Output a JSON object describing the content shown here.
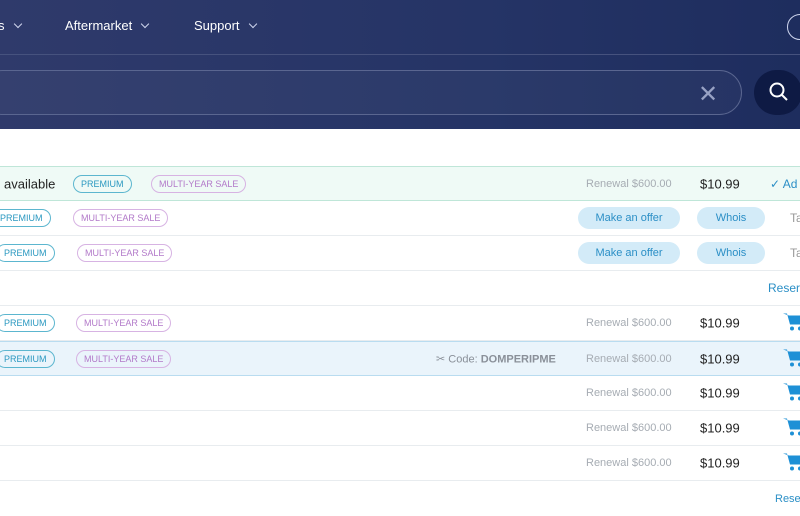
{
  "nav": {
    "items": [
      {
        "label": "s"
      },
      {
        "label": "Aftermarket"
      },
      {
        "label": "Support"
      }
    ]
  },
  "search": {
    "value": "",
    "clear_icon": "close-icon",
    "button_icon": "search-icon"
  },
  "top_row": {
    "status": "available",
    "badges": [
      "PREMIUM",
      "MULTI-YEAR SALE"
    ],
    "renewal": "Renewal $600.00",
    "price": "$10.99",
    "action": "Ad"
  },
  "offer_rows": [
    {
      "badges": [
        "PREMIUM",
        "MULTI-YEAR SALE"
      ],
      "offer": "Make an offer",
      "whois": "Whois",
      "extra": "Ta"
    },
    {
      "badges": [
        "PREMIUM",
        "MULTI-YEAR SALE"
      ],
      "offer": "Make an offer",
      "whois": "Whois",
      "extra": "Ta"
    }
  ],
  "reserve_label": "Reser",
  "reserve_label_2": "Rese",
  "list_rows": [
    {
      "badges": [
        "PREMIUM",
        "MULTI-YEAR SALE"
      ],
      "code_label": "",
      "code": "",
      "renewal": "Renewal $600.00",
      "price": "$10.99"
    },
    {
      "badges": [
        "PREMIUM",
        "MULTI-YEAR SALE"
      ],
      "code_label": "Code:",
      "code": "DOMPERIPME",
      "renewal": "Renewal $600.00",
      "price": "$10.99"
    },
    {
      "renewal": "Renewal $600.00",
      "price": "$10.99"
    },
    {
      "renewal": "Renewal $600.00",
      "price": "$10.99"
    },
    {
      "renewal": "Renewal $600.00",
      "price": "$10.99"
    }
  ],
  "colors": {
    "header": "#253466",
    "accent": "#2b8fc6",
    "cart": "#1e90d6"
  }
}
